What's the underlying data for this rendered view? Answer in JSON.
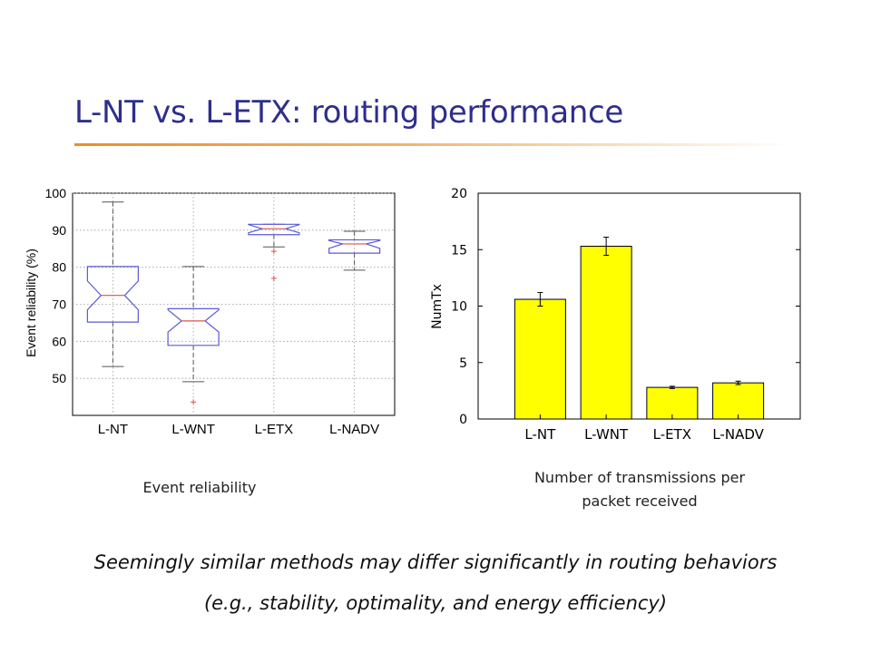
{
  "slide": {
    "title": "L-NT vs. L-ETX: routing performance",
    "captions": {
      "left": "Event reliability",
      "right_line1": "Number of transmissions per",
      "right_line2": "packet received"
    },
    "takeaway_line1": "Seemingly similar methods may differ significantly in routing behaviors",
    "takeaway_line2": "(e.g., stability, optimality, and energy efficiency)"
  },
  "colors": {
    "title": "#2e2e8c",
    "accent_rule": "#e8902c",
    "box_outline": "#5b5bd6",
    "median": "#e0504a",
    "outlier": "#e0504a",
    "bar_fill": "#ffff00",
    "whisker": "#555555"
  },
  "chart_data": [
    {
      "type": "box",
      "ylabel": "Event reliability (%)",
      "xlabel": "",
      "ylim": [
        40,
        100
      ],
      "yticks": [
        50,
        60,
        70,
        80,
        90,
        100
      ],
      "grid": true,
      "notched": true,
      "categories": [
        "L-NT",
        "L-WNT",
        "L-ETX",
        "L-NADV"
      ],
      "boxes": [
        {
          "name": "L-NT",
          "whisker_low": 53.2,
          "q1": 65.2,
          "median": 72.4,
          "q3": 80.2,
          "whisker_high": 97.6,
          "notch_low": 68.5,
          "notch_high": 76.3,
          "outliers": []
        },
        {
          "name": "L-WNT",
          "whisker_low": 49.1,
          "q1": 58.9,
          "median": 65.5,
          "q3": 68.8,
          "whisker_high": 80.2,
          "notch_low": 62.5,
          "notch_high": 68.5,
          "outliers": [
            43.6
          ]
        },
        {
          "name": "L-ETX",
          "whisker_low": 85.5,
          "q1": 88.8,
          "median": 90.4,
          "q3": 91.6,
          "whisker_high": 91.6,
          "notch_low": 89.3,
          "notch_high": 91.5,
          "outliers": [
            84.3,
            77.0
          ]
        },
        {
          "name": "L-NADV",
          "whisker_low": 79.2,
          "q1": 83.8,
          "median": 86.3,
          "q3": 87.4,
          "whisker_high": 89.7,
          "notch_low": 85.1,
          "notch_high": 87.2,
          "outliers": []
        }
      ]
    },
    {
      "type": "bar",
      "ylabel": "NumTx",
      "xlabel": "",
      "ylim": [
        0,
        20
      ],
      "yticks": [
        0,
        5,
        10,
        15,
        20
      ],
      "grid": false,
      "categories": [
        "L-NT",
        "L-WNT",
        "L-ETX",
        "L-NADV"
      ],
      "values": [
        10.6,
        15.3,
        2.8,
        3.2
      ],
      "errors": [
        0.6,
        0.8,
        0.1,
        0.15
      ]
    }
  ]
}
